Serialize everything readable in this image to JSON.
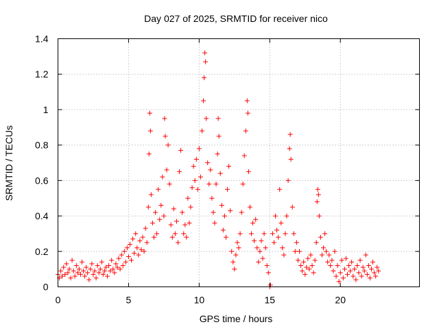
{
  "chart_data": {
    "type": "scatter",
    "title": "Day 027 of 2025, SRMTID for receiver nico",
    "xlabel": "GPS time / hours",
    "ylabel": "SRMTID / TECUs",
    "xlim": [
      0,
      25.6
    ],
    "ylim": [
      0,
      1.4
    ],
    "xticks": [
      0,
      5,
      10,
      15,
      20
    ],
    "xtick_labels": [
      "0",
      "5",
      "10",
      "15",
      "20"
    ],
    "yticks": [
      0,
      0.2,
      0.4,
      0.6,
      0.8,
      1.0,
      1.2,
      1.4
    ],
    "ytick_labels": [
      "0",
      "0.2",
      "0.4",
      "0.6",
      "0.8",
      "1",
      "1.2",
      "1.4"
    ],
    "grid": true,
    "marker": "plus",
    "color": "#ff0000",
    "series": [
      {
        "name": "SRMTID",
        "points": [
          [
            0.0,
            0.07
          ],
          [
            0.1,
            0.05
          ],
          [
            0.2,
            0.09
          ],
          [
            0.3,
            0.06
          ],
          [
            0.4,
            0.11
          ],
          [
            0.5,
            0.07
          ],
          [
            0.6,
            0.13
          ],
          [
            0.7,
            0.08
          ],
          [
            0.8,
            0.1
          ],
          [
            0.9,
            0.05
          ],
          [
            1.0,
            0.15
          ],
          [
            1.1,
            0.09
          ],
          [
            1.2,
            0.06
          ],
          [
            1.3,
            0.12
          ],
          [
            1.4,
            0.08
          ],
          [
            1.5,
            0.1
          ],
          [
            1.6,
            0.07
          ],
          [
            1.7,
            0.14
          ],
          [
            1.8,
            0.09
          ],
          [
            1.9,
            0.06
          ],
          [
            2.0,
            0.11
          ],
          [
            2.1,
            0.08
          ],
          [
            2.2,
            0.04
          ],
          [
            2.3,
            0.1
          ],
          [
            2.4,
            0.13
          ],
          [
            2.5,
            0.07
          ],
          [
            2.6,
            0.09
          ],
          [
            2.7,
            0.05
          ],
          [
            2.8,
            0.12
          ],
          [
            2.9,
            0.08
          ],
          [
            3.0,
            0.1
          ],
          [
            3.1,
            0.14
          ],
          [
            3.2,
            0.07
          ],
          [
            3.3,
            0.09
          ],
          [
            3.4,
            0.11
          ],
          [
            3.5,
            0.06
          ],
          [
            3.6,
            0.12
          ],
          [
            3.7,
            0.09
          ],
          [
            3.8,
            0.15
          ],
          [
            3.9,
            0.1
          ],
          [
            4.0,
            0.08
          ],
          [
            4.1,
            0.13
          ],
          [
            4.2,
            0.11
          ],
          [
            4.3,
            0.16
          ],
          [
            4.4,
            0.1
          ],
          [
            4.5,
            0.18
          ],
          [
            4.6,
            0.12
          ],
          [
            4.7,
            0.2
          ],
          [
            4.8,
            0.14
          ],
          [
            4.9,
            0.22
          ],
          [
            5.0,
            0.17
          ],
          [
            5.1,
            0.24
          ],
          [
            5.2,
            0.15
          ],
          [
            5.3,
            0.27
          ],
          [
            5.4,
            0.19
          ],
          [
            5.5,
            0.3
          ],
          [
            5.6,
            0.22
          ],
          [
            5.7,
            0.18
          ],
          [
            5.8,
            0.26
          ],
          [
            5.9,
            0.21
          ],
          [
            6.0,
            0.28
          ],
          [
            6.1,
            0.2
          ],
          [
            6.2,
            0.33
          ],
          [
            6.3,
            0.25
          ],
          [
            6.4,
            0.45
          ],
          [
            6.45,
            0.75
          ],
          [
            6.5,
            0.98
          ],
          [
            6.55,
            0.88
          ],
          [
            6.6,
            0.52
          ],
          [
            6.7,
            0.36
          ],
          [
            6.8,
            0.28
          ],
          [
            6.9,
            0.42
          ],
          [
            7.0,
            0.3
          ],
          [
            7.1,
            0.55
          ],
          [
            7.2,
            0.38
          ],
          [
            7.3,
            0.46
          ],
          [
            7.4,
            0.62
          ],
          [
            7.5,
            0.4
          ],
          [
            7.55,
            0.95
          ],
          [
            7.6,
            0.85
          ],
          [
            7.7,
            0.66
          ],
          [
            7.8,
            0.8
          ],
          [
            7.9,
            0.58
          ],
          [
            8.0,
            0.35
          ],
          [
            8.1,
            0.28
          ],
          [
            8.2,
            0.44
          ],
          [
            8.3,
            0.3
          ],
          [
            8.4,
            0.37
          ],
          [
            8.5,
            0.25
          ],
          [
            8.6,
            0.65
          ],
          [
            8.7,
            0.77
          ],
          [
            8.8,
            0.42
          ],
          [
            8.9,
            0.3
          ],
          [
            9.0,
            0.35
          ],
          [
            9.1,
            0.28
          ],
          [
            9.2,
            0.5
          ],
          [
            9.3,
            0.36
          ],
          [
            9.4,
            0.45
          ],
          [
            9.5,
            0.56
          ],
          [
            9.6,
            0.68
          ],
          [
            9.7,
            0.6
          ],
          [
            9.8,
            0.72
          ],
          [
            9.9,
            0.55
          ],
          [
            10.0,
            0.78
          ],
          [
            10.1,
            0.62
          ],
          [
            10.2,
            0.88
          ],
          [
            10.3,
            1.05
          ],
          [
            10.35,
            1.18
          ],
          [
            10.4,
            1.32
          ],
          [
            10.45,
            1.27
          ],
          [
            10.5,
            0.95
          ],
          [
            10.6,
            0.7
          ],
          [
            10.7,
            0.58
          ],
          [
            10.8,
            0.66
          ],
          [
            10.9,
            0.5
          ],
          [
            11.0,
            0.42
          ],
          [
            11.1,
            0.36
          ],
          [
            11.2,
            0.58
          ],
          [
            11.3,
            0.75
          ],
          [
            11.35,
            0.95
          ],
          [
            11.4,
            0.85
          ],
          [
            11.5,
            0.64
          ],
          [
            11.6,
            0.46
          ],
          [
            11.7,
            0.32
          ],
          [
            11.8,
            0.4
          ],
          [
            11.9,
            0.28
          ],
          [
            12.0,
            0.55
          ],
          [
            12.1,
            0.68
          ],
          [
            12.2,
            0.43
          ],
          [
            12.3,
            0.2
          ],
          [
            12.4,
            0.14
          ],
          [
            12.5,
            0.1
          ],
          [
            12.6,
            0.18
          ],
          [
            12.7,
            0.25
          ],
          [
            12.8,
            0.22
          ],
          [
            12.9,
            0.3
          ],
          [
            13.0,
            0.42
          ],
          [
            13.1,
            0.58
          ],
          [
            13.2,
            0.74
          ],
          [
            13.3,
            0.88
          ],
          [
            13.4,
            1.05
          ],
          [
            13.45,
            0.98
          ],
          [
            13.5,
            0.65
          ],
          [
            13.6,
            0.45
          ],
          [
            13.7,
            0.3
          ],
          [
            13.8,
            0.36
          ],
          [
            13.9,
            0.26
          ],
          [
            14.0,
            0.38
          ],
          [
            14.1,
            0.22
          ],
          [
            14.2,
            0.14
          ],
          [
            14.3,
            0.2
          ],
          [
            14.4,
            0.26
          ],
          [
            14.5,
            0.16
          ],
          [
            14.6,
            0.3
          ],
          [
            14.7,
            0.22
          ],
          [
            14.8,
            0.12
          ],
          [
            14.9,
            0.08
          ],
          [
            15.0,
            0.0
          ],
          [
            15.05,
            0.01
          ],
          [
            15.2,
            0.3
          ],
          [
            15.3,
            0.25
          ],
          [
            15.4,
            0.4
          ],
          [
            15.5,
            0.32
          ],
          [
            15.6,
            0.28
          ],
          [
            15.7,
            0.55
          ],
          [
            15.8,
            0.36
          ],
          [
            15.9,
            0.22
          ],
          [
            16.0,
            0.18
          ],
          [
            16.1,
            0.3
          ],
          [
            16.2,
            0.4
          ],
          [
            16.3,
            0.6
          ],
          [
            16.4,
            0.78
          ],
          [
            16.45,
            0.86
          ],
          [
            16.5,
            0.72
          ],
          [
            16.6,
            0.45
          ],
          [
            16.7,
            0.3
          ],
          [
            16.8,
            0.2
          ],
          [
            16.9,
            0.25
          ],
          [
            17.0,
            0.15
          ],
          [
            17.1,
            0.2
          ],
          [
            17.2,
            0.12
          ],
          [
            17.3,
            0.09
          ],
          [
            17.4,
            0.14
          ],
          [
            17.5,
            0.07
          ],
          [
            17.6,
            0.11
          ],
          [
            17.7,
            0.16
          ],
          [
            17.8,
            0.1
          ],
          [
            17.9,
            0.18
          ],
          [
            18.0,
            0.12
          ],
          [
            18.1,
            0.08
          ],
          [
            18.2,
            0.15
          ],
          [
            18.3,
            0.25
          ],
          [
            18.35,
            0.48
          ],
          [
            18.4,
            0.55
          ],
          [
            18.45,
            0.52
          ],
          [
            18.5,
            0.4
          ],
          [
            18.6,
            0.28
          ],
          [
            18.7,
            0.18
          ],
          [
            18.8,
            0.22
          ],
          [
            18.9,
            0.3
          ],
          [
            19.0,
            0.2
          ],
          [
            19.1,
            0.14
          ],
          [
            19.2,
            0.18
          ],
          [
            19.3,
            0.12
          ],
          [
            19.4,
            0.15
          ],
          [
            19.5,
            0.09
          ],
          [
            19.6,
            0.2
          ],
          [
            19.7,
            0.06
          ],
          [
            19.8,
            0.12
          ],
          [
            19.9,
            0.03
          ],
          [
            20.0,
            0.08
          ],
          [
            20.1,
            0.15
          ],
          [
            20.2,
            0.05
          ],
          [
            20.3,
            0.1
          ],
          [
            20.4,
            0.16
          ],
          [
            20.5,
            0.07
          ],
          [
            20.6,
            0.12
          ],
          [
            20.7,
            0.09
          ],
          [
            20.8,
            0.14
          ],
          [
            20.9,
            0.06
          ],
          [
            21.0,
            0.1
          ],
          [
            21.1,
            0.04
          ],
          [
            21.2,
            0.12
          ],
          [
            21.3,
            0.08
          ],
          [
            21.4,
            0.15
          ],
          [
            21.5,
            0.06
          ],
          [
            21.6,
            0.11
          ],
          [
            21.7,
            0.09
          ],
          [
            21.8,
            0.18
          ],
          [
            21.9,
            0.07
          ],
          [
            22.0,
            0.12
          ],
          [
            22.1,
            0.05
          ],
          [
            22.2,
            0.1
          ],
          [
            22.3,
            0.14
          ],
          [
            22.4,
            0.08
          ],
          [
            22.5,
            0.06
          ],
          [
            22.6,
            0.11
          ],
          [
            22.7,
            0.09
          ]
        ]
      }
    ]
  }
}
